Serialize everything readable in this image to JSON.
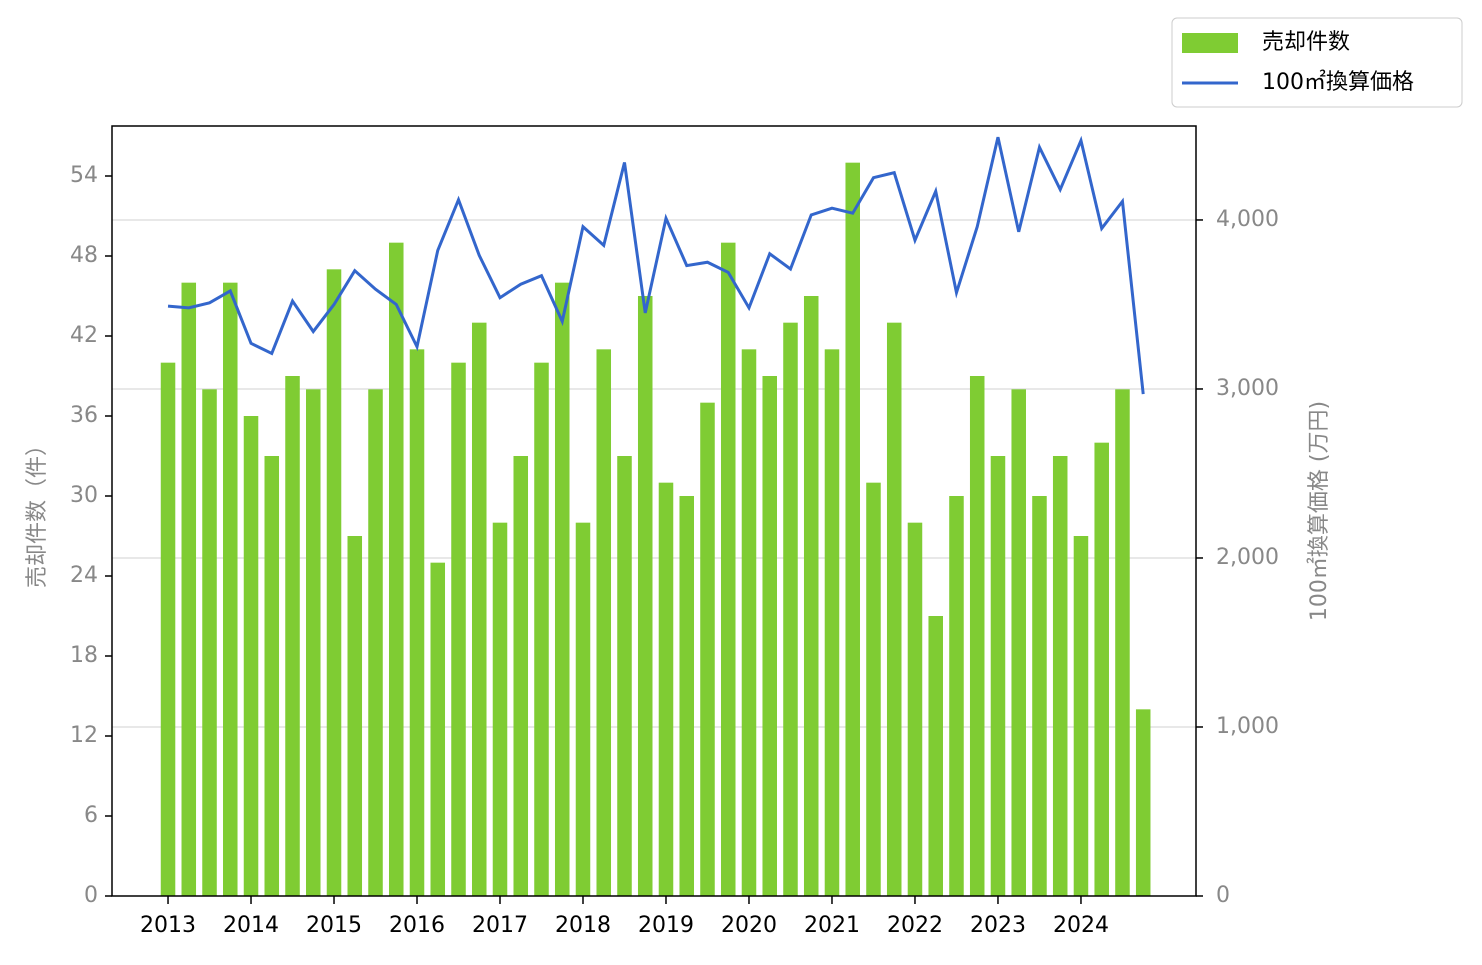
{
  "chart_data": {
    "type": "bar-line",
    "x": [
      2013,
      2013.25,
      2013.5,
      2013.75,
      2014,
      2014.25,
      2014.5,
      2014.75,
      2015,
      2015.25,
      2015.5,
      2015.75,
      2016,
      2016.25,
      2016.5,
      2016.75,
      2017,
      2017.25,
      2017.5,
      2017.75,
      2018,
      2018.25,
      2018.5,
      2018.75,
      2019,
      2019.25,
      2019.5,
      2019.75,
      2020,
      2020.25,
      2020.5,
      2020.75,
      2021,
      2021.25,
      2021.5,
      2021.75,
      2022,
      2022.25,
      2022.5,
      2022.75,
      2023,
      2023.25,
      2023.5,
      2023.75,
      2024,
      2024.25,
      2024.5,
      2024.75
    ],
    "xlim": [
      2012.325,
      2025.386
    ],
    "xticks": [
      2013,
      2014,
      2015,
      2016,
      2017,
      2018,
      2019,
      2020,
      2021,
      2022,
      2023,
      2024
    ],
    "y_label": "売却件数（件）",
    "y2_label": "100㎡換算価格 (万円)",
    "ylim": [
      0,
      57.75
    ],
    "yticks": [
      0,
      6,
      12,
      18,
      24,
      30,
      36,
      42,
      48,
      54
    ],
    "y2lim": [
      0,
      4556
    ],
    "y2ticks": [
      0,
      {
        "value": 1000,
        "label": "1,000"
      },
      {
        "value": 2000,
        "label": "2,000"
      },
      {
        "value": 3000,
        "label": "3,000"
      },
      {
        "value": 4000,
        "label": "4,000"
      }
    ],
    "grid": true,
    "legend": "upper right",
    "series": [
      {
        "name": "売却件数",
        "kind": "bar",
        "color": "#7fcc33",
        "values": [
          40,
          46,
          38,
          46,
          36,
          33,
          39,
          38,
          47,
          27,
          38,
          49,
          41,
          25,
          40,
          43,
          28,
          33,
          40,
          46,
          28,
          41,
          33,
          45,
          31,
          30,
          37,
          49,
          41,
          39,
          43,
          45,
          41,
          55,
          31,
          43,
          28,
          21,
          30,
          39,
          33,
          38,
          30,
          33,
          27,
          34,
          38,
          14
        ]
      },
      {
        "name": "100㎡換算価格",
        "kind": "line",
        "axis": "y2",
        "color": "#3366cc",
        "values": [
          3490,
          3480,
          3510,
          3580,
          3270,
          3210,
          3520,
          3340,
          3500,
          3700,
          3590,
          3500,
          3250,
          3820,
          4120,
          3790,
          3540,
          3620,
          3670,
          3400,
          3960,
          3850,
          4340,
          3450,
          4010,
          3730,
          3750,
          3690,
          3480,
          3800,
          3710,
          4030,
          4070,
          4040,
          4250,
          4280,
          3880,
          4170,
          3570,
          3960,
          4490,
          3930,
          4430,
          4180,
          4470,
          3950,
          4110,
          2970
        ]
      }
    ]
  }
}
